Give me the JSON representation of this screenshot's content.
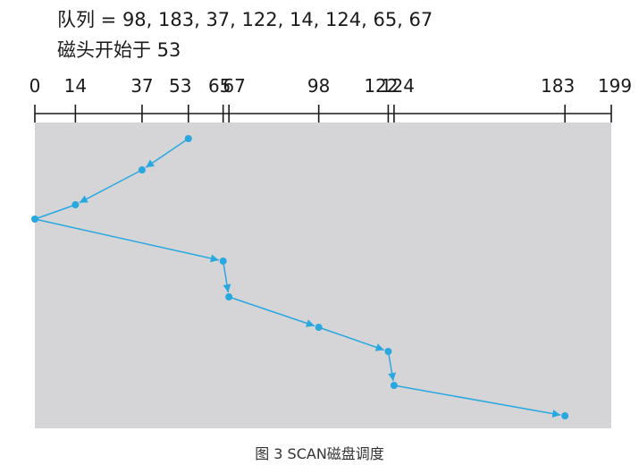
{
  "header": {
    "queue_line": "队列 = 98, 183, 37, 122, 14, 124, 65, 67",
    "head_line": "磁头开始于 53"
  },
  "caption": "图 3 SCAN磁盘调度",
  "axis": {
    "min": 0,
    "max": 199,
    "ticks": [
      0,
      14,
      37,
      53,
      65,
      67,
      98,
      122,
      124,
      183,
      199
    ]
  },
  "path": [
    53,
    37,
    14,
    0,
    65,
    67,
    98,
    122,
    124,
    183
  ],
  "colors": {
    "path": "#29a8e0",
    "panel": "#d5d5d7",
    "axis": "#1a1a1a"
  }
}
